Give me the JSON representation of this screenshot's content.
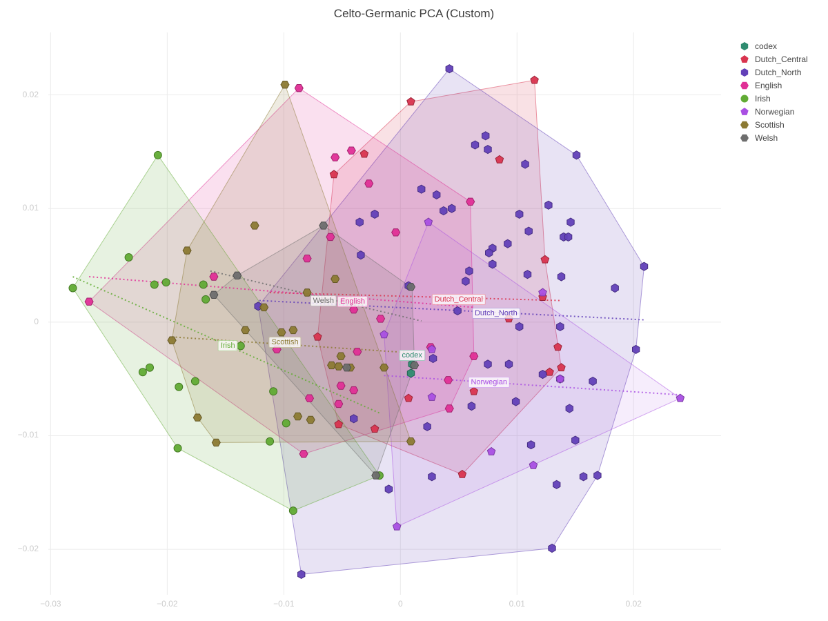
{
  "title": "Celto-Germanic PCA (Custom)",
  "chart_data": {
    "type": "scatter",
    "title": "Celto-Germanic PCA (Custom)",
    "xlabel": "",
    "ylabel": "",
    "xlim": [
      -0.0302,
      0.0275
    ],
    "ylim": [
      -0.024,
      0.0255
    ],
    "grid": true,
    "legend_position": "right",
    "xticks": [
      -0.03,
      -0.02,
      -0.01,
      0,
      0.01,
      0.02
    ],
    "xtick_labels": [
      "−0.03",
      "−0.02",
      "−0.01",
      "0",
      "0.01",
      "0.02"
    ],
    "yticks": [
      -0.02,
      -0.01,
      0,
      0.01,
      0.02
    ],
    "ytick_labels": [
      "−0.02",
      "−0.01",
      "0",
      "0.01",
      "0.02"
    ],
    "series": [
      {
        "name": "codex",
        "color": "#2f8c70",
        "marker": "hexagon",
        "label_pos": [
          0.001,
          -0.0029
        ],
        "points": [
          [
            0.001,
            -0.0037
          ],
          [
            0.0009,
            -0.0045
          ]
        ],
        "hull": [
          [
            0.001,
            -0.0037
          ],
          [
            0.0009,
            -0.0045
          ]
        ],
        "trend": null
      },
      {
        "name": "Dutch_Central",
        "color": "#d9344f",
        "marker": "pentagon",
        "label_pos": [
          0.005,
          0.002
        ],
        "points": [
          [
            0.0009,
            0.0194
          ],
          [
            0.0115,
            0.0213
          ],
          [
            -0.0031,
            0.0148
          ],
          [
            -0.0057,
            0.013
          ],
          [
            0.0085,
            0.0143
          ],
          [
            0.0124,
            0.0055
          ],
          [
            0.0093,
            0.0003
          ],
          [
            0.0122,
            0.0022
          ],
          [
            0.0135,
            -0.0022
          ],
          [
            0.0138,
            -0.004
          ],
          [
            0.0128,
            -0.0044
          ],
          [
            0.0063,
            -0.0061
          ],
          [
            0.0053,
            -0.0134
          ],
          [
            -0.0022,
            -0.0094
          ],
          [
            -0.0053,
            -0.009
          ],
          [
            -0.0071,
            -0.0013
          ],
          [
            0.0007,
            -0.0067
          ]
        ],
        "hull": [
          [
            0.0009,
            0.0194
          ],
          [
            0.0115,
            0.0213
          ],
          [
            0.0124,
            0.0055
          ],
          [
            0.0138,
            -0.004
          ],
          [
            0.0053,
            -0.0134
          ],
          [
            -0.0053,
            -0.009
          ],
          [
            -0.0071,
            -0.0013
          ],
          [
            -0.0057,
            0.013
          ]
        ],
        "trend": [
          [
            -0.0112,
            0.0026
          ],
          [
            0.0138,
            0.0019
          ]
        ]
      },
      {
        "name": "Dutch_North",
        "color": "#6240b8",
        "marker": "hexagon",
        "label_pos": [
          0.0082,
          0.0008
        ],
        "points": [
          [
            0.0042,
            0.0223
          ],
          [
            0.0073,
            0.0164
          ],
          [
            0.0064,
            0.0156
          ],
          [
            0.0075,
            0.0152
          ],
          [
            0.0107,
            0.0139
          ],
          [
            0.0151,
            0.0147
          ],
          [
            0.0018,
            0.0117
          ],
          [
            0.0031,
            0.0112
          ],
          [
            0.0044,
            0.01
          ],
          [
            0.0037,
            0.0098
          ],
          [
            0.0127,
            0.0103
          ],
          [
            0.0102,
            0.0095
          ],
          [
            0.0146,
            0.0088
          ],
          [
            0.011,
            0.008
          ],
          [
            0.014,
            0.0075
          ],
          [
            0.0144,
            0.0075
          ],
          [
            0.0092,
            0.0069
          ],
          [
            0.0079,
            0.0065
          ],
          [
            0.0076,
            0.0061
          ],
          [
            0.0079,
            0.0051
          ],
          [
            0.0059,
            0.0045
          ],
          [
            0.0109,
            0.0042
          ],
          [
            0.0056,
            0.0036
          ],
          [
            0.0138,
            0.004
          ],
          [
            0.0209,
            0.0049
          ],
          [
            0.0184,
            0.003
          ],
          [
            0.0007,
            0.0032
          ],
          [
            0.0049,
            0.001
          ],
          [
            0.0102,
            -0.0004
          ],
          [
            0.0137,
            -0.0004
          ],
          [
            0.0202,
            -0.0024
          ],
          [
            0.0028,
            -0.0032
          ],
          [
            0.0075,
            -0.0037
          ],
          [
            0.0093,
            -0.0037
          ],
          [
            0.0122,
            -0.0046
          ],
          [
            0.0137,
            -0.005
          ],
          [
            0.0165,
            -0.0052
          ],
          [
            0.0061,
            -0.0074
          ],
          [
            0.0099,
            -0.007
          ],
          [
            0.0145,
            -0.0076
          ],
          [
            0.0023,
            -0.0092
          ],
          [
            0.0112,
            -0.0108
          ],
          [
            0.015,
            -0.0104
          ],
          [
            0.0027,
            -0.0136
          ],
          [
            0.0157,
            -0.0136
          ],
          [
            0.0169,
            -0.0135
          ],
          [
            0.0134,
            -0.0143
          ],
          [
            -0.001,
            -0.0147
          ],
          [
            -0.0022,
            0.0095
          ],
          [
            -0.0035,
            0.0088
          ],
          [
            -0.0034,
            0.0059
          ],
          [
            -0.004,
            -0.0085
          ],
          [
            -0.0122,
            0.0014
          ],
          [
            -0.0085,
            -0.0222
          ],
          [
            0.013,
            -0.0199
          ]
        ],
        "hull": [
          [
            0.0042,
            0.0223
          ],
          [
            0.0151,
            0.0147
          ],
          [
            0.0209,
            0.0049
          ],
          [
            0.0202,
            -0.0024
          ],
          [
            0.0169,
            -0.0135
          ],
          [
            0.013,
            -0.0199
          ],
          [
            -0.0085,
            -0.0222
          ],
          [
            -0.0122,
            0.0014
          ]
        ],
        "trend": [
          [
            -0.0121,
            0.0019
          ],
          [
            0.0209,
            0.0002
          ]
        ]
      },
      {
        "name": "English",
        "color": "#e02f96",
        "marker": "hexagon-flat",
        "label_pos": [
          -0.0041,
          0.0018
        ],
        "points": [
          [
            -0.0087,
            0.0206
          ],
          [
            -0.0042,
            0.0151
          ],
          [
            -0.0056,
            0.0145
          ],
          [
            -0.0027,
            0.0122
          ],
          [
            0.006,
            0.0106
          ],
          [
            -0.0004,
            0.0079
          ],
          [
            -0.006,
            0.0075
          ],
          [
            -0.008,
            0.0056
          ],
          [
            -0.016,
            0.004
          ],
          [
            -0.0267,
            0.0018
          ],
          [
            -0.0106,
            -0.0024
          ],
          [
            -0.004,
            0.0011
          ],
          [
            -0.0017,
            0.0003
          ],
          [
            -0.0037,
            -0.0026
          ],
          [
            -0.0051,
            -0.0056
          ],
          [
            -0.004,
            -0.006
          ],
          [
            -0.0078,
            -0.0067
          ],
          [
            -0.0053,
            -0.0072
          ],
          [
            -0.0083,
            -0.0116
          ],
          [
            0.0041,
            -0.0051
          ],
          [
            0.0042,
            -0.0076
          ],
          [
            0.0026,
            -0.0022
          ],
          [
            0.0063,
            -0.003
          ]
        ],
        "hull": [
          [
            -0.0087,
            0.0206
          ],
          [
            0.006,
            0.0106
          ],
          [
            0.0063,
            -0.003
          ],
          [
            0.0042,
            -0.0076
          ],
          [
            -0.0083,
            -0.0116
          ],
          [
            -0.0267,
            0.0018
          ]
        ],
        "trend": [
          [
            -0.0267,
            0.004
          ],
          [
            0.0063,
            0.0013
          ]
        ]
      },
      {
        "name": "Irish",
        "color": "#61ab34",
        "marker": "circle",
        "label_pos": [
          -0.0148,
          -0.0021
        ],
        "points": [
          [
            -0.0208,
            0.0147
          ],
          [
            -0.0281,
            0.003
          ],
          [
            -0.0233,
            0.0057
          ],
          [
            -0.0211,
            0.0033
          ],
          [
            -0.0201,
            0.0035
          ],
          [
            -0.0169,
            0.0033
          ],
          [
            -0.0167,
            0.002
          ],
          [
            -0.0137,
            -0.0021
          ],
          [
            -0.0221,
            -0.0044
          ],
          [
            -0.0215,
            -0.004
          ],
          [
            -0.019,
            -0.0057
          ],
          [
            -0.0176,
            -0.0052
          ],
          [
            -0.0109,
            -0.0061
          ],
          [
            -0.0112,
            -0.0105
          ],
          [
            -0.0098,
            -0.0089
          ],
          [
            -0.0191,
            -0.0111
          ],
          [
            -0.0092,
            -0.0166
          ],
          [
            -0.0018,
            -0.0135
          ]
        ],
        "hull": [
          [
            -0.0208,
            0.0147
          ],
          [
            -0.0018,
            -0.0135
          ],
          [
            -0.0092,
            -0.0166
          ],
          [
            -0.0191,
            -0.0111
          ],
          [
            -0.0281,
            0.003
          ]
        ],
        "trend": [
          [
            -0.0281,
            0.004
          ],
          [
            -0.0018,
            -0.008
          ]
        ]
      },
      {
        "name": "Norwegian",
        "color": "#a94fe3",
        "marker": "pentagon",
        "label_pos": [
          0.0076,
          -0.0053
        ],
        "points": [
          [
            0.0024,
            0.0088
          ],
          [
            -0.0014,
            -0.0011
          ],
          [
            0.0027,
            -0.0024
          ],
          [
            0.0122,
            0.0026
          ],
          [
            0.0137,
            -0.005
          ],
          [
            0.0027,
            -0.0066
          ],
          [
            0.0078,
            -0.0114
          ],
          [
            0.0114,
            -0.0126
          ],
          [
            -0.0003,
            -0.018
          ],
          [
            0.024,
            -0.0067
          ]
        ],
        "hull": [
          [
            0.0024,
            0.0088
          ],
          [
            0.024,
            -0.0067
          ],
          [
            -0.0003,
            -0.018
          ],
          [
            -0.0014,
            -0.0011
          ]
        ],
        "trend": [
          [
            -0.0014,
            -0.0047
          ],
          [
            0.024,
            -0.0064
          ]
        ]
      },
      {
        "name": "Scottish",
        "color": "#8c7a33",
        "marker": "hexagon-flat",
        "label_pos": [
          -0.0099,
          -0.0018
        ],
        "points": [
          [
            -0.0099,
            0.0209
          ],
          [
            -0.0125,
            0.0085
          ],
          [
            -0.0183,
            0.0063
          ],
          [
            -0.0117,
            0.0013
          ],
          [
            -0.008,
            0.0026
          ],
          [
            -0.0056,
            0.0038
          ],
          [
            -0.0196,
            -0.0016
          ],
          [
            -0.0133,
            -0.0007
          ],
          [
            -0.0102,
            -0.0009
          ],
          [
            -0.0092,
            -0.0007
          ],
          [
            -0.0059,
            -0.0038
          ],
          [
            -0.0053,
            -0.0039
          ],
          [
            -0.0043,
            -0.004
          ],
          [
            -0.0051,
            -0.003
          ],
          [
            -0.0014,
            -0.004
          ],
          [
            -0.0174,
            -0.0084
          ],
          [
            -0.0158,
            -0.0106
          ],
          [
            -0.0088,
            -0.0083
          ],
          [
            -0.0077,
            -0.0086
          ],
          [
            0.0009,
            -0.0105
          ]
        ],
        "hull": [
          [
            -0.0099,
            0.0209
          ],
          [
            0.0009,
            -0.0105
          ],
          [
            -0.0158,
            -0.0106
          ],
          [
            -0.0174,
            -0.0084
          ],
          [
            -0.0196,
            -0.0016
          ],
          [
            -0.0183,
            0.0063
          ]
        ],
        "trend": [
          [
            -0.0196,
            -0.0013
          ],
          [
            0.0009,
            -0.0027
          ]
        ]
      },
      {
        "name": "Welsh",
        "color": "#6e6e6e",
        "marker": "hexagon-flat",
        "label_pos": [
          -0.0066,
          0.0019
        ],
        "points": [
          [
            -0.0066,
            0.0085
          ],
          [
            -0.014,
            0.0041
          ],
          [
            -0.016,
            0.0024
          ],
          [
            -0.0046,
            -0.004
          ],
          [
            0.0009,
            0.0031
          ],
          [
            0.0012,
            -0.0038
          ],
          [
            -0.0021,
            -0.0135
          ]
        ],
        "hull": [
          [
            -0.0066,
            0.0085
          ],
          [
            0.001,
            0.003
          ],
          [
            0.0012,
            -0.0038
          ],
          [
            -0.0021,
            -0.0135
          ],
          [
            -0.016,
            0.0024
          ],
          [
            -0.014,
            0.0041
          ]
        ],
        "trend": [
          [
            -0.0163,
            0.0045
          ],
          [
            0.0018,
            0.0001
          ]
        ]
      }
    ]
  }
}
